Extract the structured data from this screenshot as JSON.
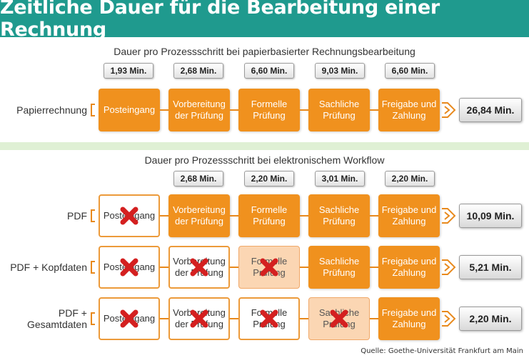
{
  "title": "Zeitliche Dauer für die Bearbeitung einer Rechnung",
  "section_paper": {
    "title": "Dauer pro Prozessschritt bei papierbasierter Rechnungsbearbeitung",
    "times": [
      "1,93 Min.",
      "2,68 Min.",
      "6,60 Min.",
      "9,03 Min.",
      "6,60 Min."
    ]
  },
  "section_electronic": {
    "title": "Dauer pro Prozessschritt bei elektronischem Workflow",
    "times": [
      "2,68 Min.",
      "2,20 Min.",
      "3,01 Min.",
      "2,20 Min."
    ]
  },
  "steps": {
    "posteingang": "Posteingang",
    "vorbereitung_1": "Vorbereitung",
    "vorbereitung_2": "der Prüfung",
    "formelle_1": "Formelle",
    "formelle_2": "Prüfung",
    "sachliche_1": "Sachliche",
    "sachliche_2": "Prüfung",
    "freigabe_1": "Freigabe und",
    "freigabe_2": "Zahlung"
  },
  "rows": [
    {
      "label": "Papierrechnung",
      "total": "26,84 Min.",
      "states": [
        "active",
        "active",
        "active",
        "active",
        "active"
      ]
    },
    {
      "label": "PDF",
      "total": "10,09 Min.",
      "states": [
        "removed",
        "active",
        "active",
        "active",
        "active"
      ]
    },
    {
      "label": "PDF + Kopfdaten",
      "total": "5,21 Min.",
      "states": [
        "removed",
        "removed",
        "partial",
        "active",
        "active"
      ]
    },
    {
      "label": "PDF + Gesamtdaten",
      "total": "2,20 Min.",
      "states": [
        "removed",
        "removed",
        "removed",
        "partial",
        "active"
      ]
    }
  ],
  "source": "Quelle: Goethe-Universität Frankfurt am Main",
  "colors": {
    "header_bg": "#1f9a8e",
    "step_active": "#f0911e",
    "step_partial": "#fbd6b3",
    "separator": "#dff0d4",
    "cross": "#d42020"
  },
  "icons": {
    "removed_step": "red-cross-icon",
    "result": "arrow-right-icon"
  }
}
